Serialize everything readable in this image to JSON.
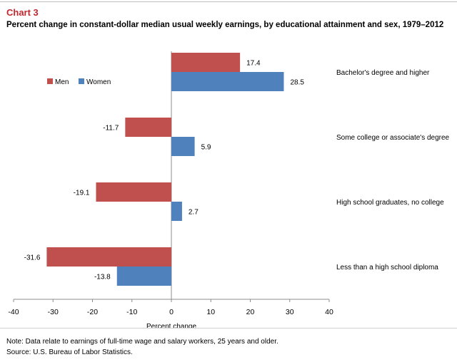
{
  "header": {
    "label": "Chart 3",
    "title": "Percent change in constant-dollar median usual weekly earnings, by educational attainment and sex, 1979–2012"
  },
  "footer": {
    "note": "Note: Data relate to earnings of full-time wage and salary workers, 25 years and older.",
    "source": "Source: U.S. Bureau of Labor Statistics."
  },
  "colors": {
    "men": "#c0504d",
    "women": "#4f81bd"
  },
  "chart_data": {
    "type": "bar",
    "orientation": "horizontal",
    "title": "Percent change in constant-dollar median usual weekly earnings, by educational attainment and sex, 1979–2012",
    "xlabel": "Percent change",
    "ylabel": "",
    "xlim": [
      -40,
      40
    ],
    "xticks": [
      -40,
      -30,
      -20,
      -10,
      0,
      10,
      20,
      30,
      40
    ],
    "legend_position": "top-left",
    "grid": false,
    "categories": [
      "Bachelor's degree and higher",
      "Some college or associate's  degree",
      "High school graduates, no college",
      "Less than a high school diploma"
    ],
    "series": [
      {
        "name": "Men",
        "values": [
          17.4,
          -11.7,
          -19.1,
          -31.6
        ],
        "labels": [
          "17.4",
          "-11.7",
          "-19.1",
          "-31.6"
        ]
      },
      {
        "name": "Women",
        "values": [
          28.5,
          5.9,
          2.7,
          -13.8
        ],
        "labels": [
          "28.5",
          "5.9",
          "2.7",
          "-13.8"
        ]
      }
    ]
  }
}
